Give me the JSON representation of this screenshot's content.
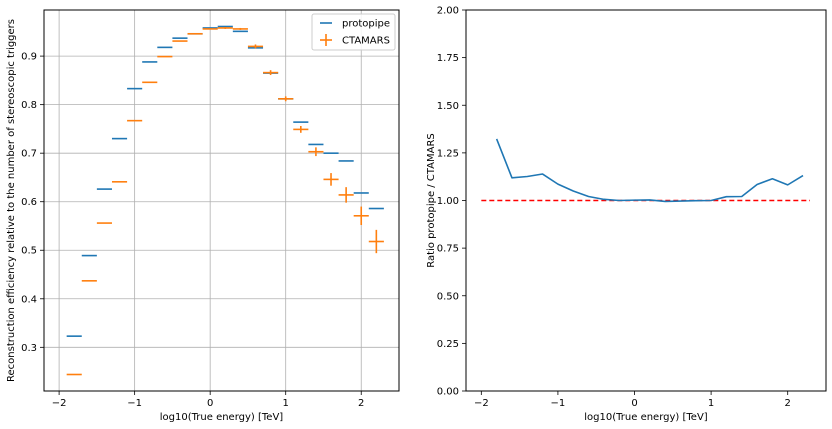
{
  "chart_data": [
    {
      "type": "scatter",
      "xlabel": "log10(True energy) [TeV]",
      "ylabel": "Reconstruction efficiency relative to the number of stereoscopic triggers",
      "xlim": [
        -2.2,
        2.5
      ],
      "ylim": [
        0.21,
        0.995
      ],
      "grid": true,
      "legend_position": "top-right",
      "xticks": [
        -2,
        -1,
        0,
        1,
        2
      ],
      "xtick_labels": [
        "−2",
        "−1",
        "0",
        "1",
        "2"
      ],
      "yticks": [
        0.3,
        0.4,
        0.5,
        0.6,
        0.7,
        0.8,
        0.9
      ],
      "ytick_labels": [
        "0.3",
        "0.4",
        "0.5",
        "0.6",
        "0.7",
        "0.8",
        "0.9"
      ],
      "bin_halfwidth": 0.1,
      "series": [
        {
          "name": "protopipe",
          "color": "#1f77b4",
          "x": [
            -1.8,
            -1.6,
            -1.4,
            -1.2,
            -1.0,
            -0.8,
            -0.6,
            -0.4,
            -0.2,
            0.0,
            0.2,
            0.4,
            0.6,
            0.8,
            1.0,
            1.2,
            1.4,
            1.6,
            1.8,
            2.0,
            2.2
          ],
          "y": [
            0.323,
            0.489,
            0.626,
            0.73,
            0.833,
            0.888,
            0.918,
            0.937,
            0.946,
            0.958,
            0.961,
            0.951,
            0.917,
            0.865,
            0.812,
            0.764,
            0.718,
            0.7,
            0.684,
            0.618,
            0.586
          ],
          "yerr": [
            0,
            0,
            0,
            0,
            0,
            0,
            0,
            0,
            0,
            0,
            0,
            0,
            0,
            0,
            0,
            0,
            0,
            0,
            0,
            0,
            0
          ]
        },
        {
          "name": "CTAMARS",
          "color": "#ff7f0e",
          "x": [
            -1.8,
            -1.6,
            -1.4,
            -1.2,
            -1.0,
            -0.8,
            -0.6,
            -0.4,
            -0.2,
            0.0,
            0.2,
            0.4,
            0.6,
            0.8,
            1.0,
            1.2,
            1.4,
            1.6,
            1.8,
            2.0,
            2.2
          ],
          "y": [
            0.244,
            0.437,
            0.556,
            0.641,
            0.767,
            0.846,
            0.899,
            0.931,
            0.946,
            0.956,
            0.958,
            0.956,
            0.92,
            0.866,
            0.812,
            0.749,
            0.703,
            0.646,
            0.614,
            0.571,
            0.518
          ],
          "yerr": [
            0,
            0,
            0,
            0,
            0,
            0,
            0,
            0,
            0,
            0,
            0.002,
            0.002,
            0.004,
            0.005,
            0.005,
            0.007,
            0.009,
            0.013,
            0.016,
            0.019,
            0.024
          ]
        }
      ]
    },
    {
      "type": "line",
      "xlabel": "log10(True energy) [TeV]",
      "ylabel": "Ratio protopipe / CTAMARS",
      "xlim": [
        -2.2,
        2.5
      ],
      "ylim": [
        0.0,
        2.0
      ],
      "grid": false,
      "xticks": [
        -2,
        -1,
        0,
        1,
        2
      ],
      "xtick_labels": [
        "−2",
        "−1",
        "0",
        "1",
        "2"
      ],
      "yticks": [
        0.0,
        0.25,
        0.5,
        0.75,
        1.0,
        1.25,
        1.5,
        1.75,
        2.0
      ],
      "ytick_labels": [
        "0.00",
        "0.25",
        "0.50",
        "0.75",
        "1.00",
        "1.25",
        "1.50",
        "1.75",
        "2.00"
      ],
      "series": [
        {
          "color": "#1f77b4",
          "x": [
            -1.8,
            -1.6,
            -1.4,
            -1.2,
            -1.0,
            -0.8,
            -0.6,
            -0.4,
            -0.2,
            0.0,
            0.2,
            0.4,
            0.6,
            0.8,
            1.0,
            1.2,
            1.4,
            1.6,
            1.8,
            2.0,
            2.2
          ],
          "y": [
            1.323,
            1.119,
            1.126,
            1.139,
            1.086,
            1.05,
            1.021,
            1.006,
            1.0,
            1.002,
            1.003,
            0.995,
            0.997,
            0.999,
            1.0,
            1.02,
            1.021,
            1.084,
            1.114,
            1.082,
            1.131
          ]
        }
      ],
      "reference_line": {
        "y": 1.0,
        "x": [
          -2.0,
          2.5
        ],
        "color": "#ff0000",
        "style": "dashed"
      }
    }
  ]
}
